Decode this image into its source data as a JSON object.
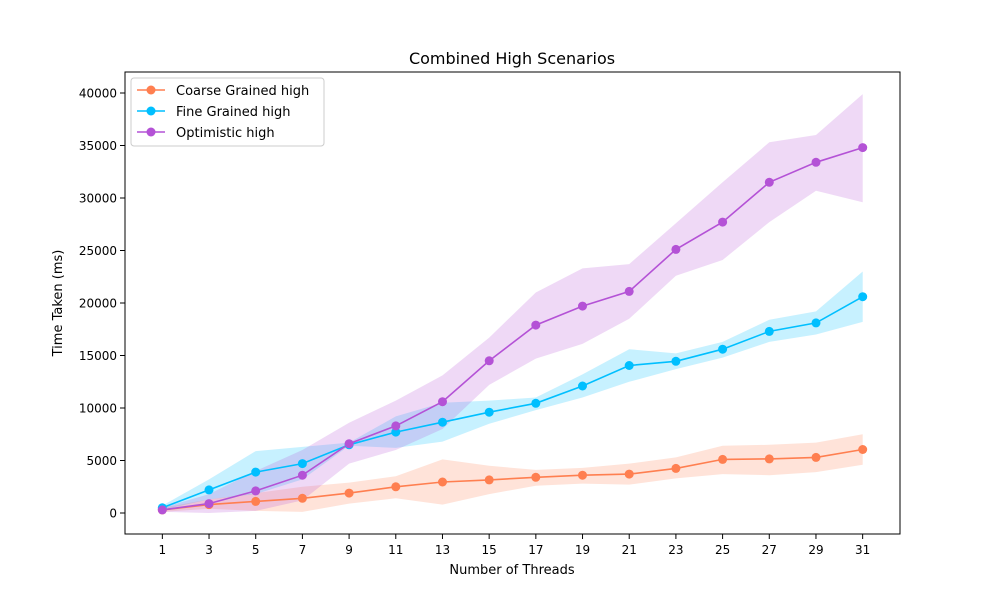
{
  "chart_data": {
    "type": "line",
    "title": "Combined High Scenarios",
    "xlabel": "Number of Threads",
    "ylabel": "Time Taken (ms)",
    "x": [
      1,
      3,
      5,
      7,
      9,
      11,
      13,
      15,
      17,
      19,
      21,
      23,
      25,
      27,
      29,
      31
    ],
    "xlim": [
      -0.6,
      32.6
    ],
    "ylim": [
      -2000,
      42000
    ],
    "xticks": [
      "1",
      "3",
      "5",
      "7",
      "9",
      "11",
      "13",
      "15",
      "17",
      "19",
      "21",
      "23",
      "25",
      "27",
      "29",
      "31"
    ],
    "yticks": [
      0,
      5000,
      10000,
      15000,
      20000,
      25000,
      30000,
      35000,
      40000
    ],
    "ytick_labels": [
      "0",
      "5000",
      "10000",
      "15000",
      "20000",
      "25000",
      "30000",
      "35000",
      "40000"
    ],
    "grid": false,
    "legend_position": "top-left",
    "series": [
      {
        "name": "Coarse Grained high",
        "color": "#ff7f50",
        "values": [
          300,
          800,
          1100,
          1400,
          1900,
          2500,
          2950,
          3150,
          3400,
          3600,
          3700,
          4250,
          5100,
          5150,
          5300,
          6050
        ],
        "lower": [
          100,
          400,
          200,
          100,
          900,
          1400,
          800,
          1800,
          2600,
          2800,
          2700,
          3300,
          3700,
          3600,
          3900,
          4600
        ],
        "upper": [
          500,
          1300,
          1900,
          2500,
          2900,
          3500,
          5100,
          4500,
          4100,
          4300,
          4700,
          5300,
          6400,
          6500,
          6700,
          7500
        ]
      },
      {
        "name": "Fine Grained high",
        "color": "#00bfff",
        "values": [
          500,
          2200,
          3900,
          4700,
          6500,
          7700,
          8650,
          9600,
          10450,
          12100,
          14050,
          14450,
          15600,
          17300,
          18100,
          20600
        ],
        "lower": [
          300,
          1300,
          1800,
          3200,
          6400,
          6200,
          6800,
          8500,
          9800,
          11000,
          12500,
          13700,
          14800,
          16300,
          17000,
          18200
        ],
        "upper": [
          700,
          3200,
          5900,
          6300,
          6700,
          9200,
          10500,
          10700,
          11000,
          13200,
          15600,
          15200,
          16300,
          18400,
          19200,
          23000
        ]
      },
      {
        "name": "Optimistic high",
        "color": "#b452d6",
        "values": [
          300,
          900,
          2100,
          3600,
          6600,
          8300,
          10600,
          14500,
          17900,
          19700,
          21100,
          25100,
          27700,
          31500,
          33400,
          34800
        ],
        "lower": [
          100,
          0,
          200,
          1200,
          4700,
          6000,
          8000,
          12200,
          14700,
          16100,
          18500,
          22600,
          24100,
          27700,
          30700,
          29600
        ],
        "upper": [
          500,
          1800,
          4000,
          6000,
          8600,
          10700,
          13100,
          16700,
          21000,
          23300,
          23700,
          27600,
          31500,
          35300,
          36000,
          39900
        ]
      }
    ]
  }
}
